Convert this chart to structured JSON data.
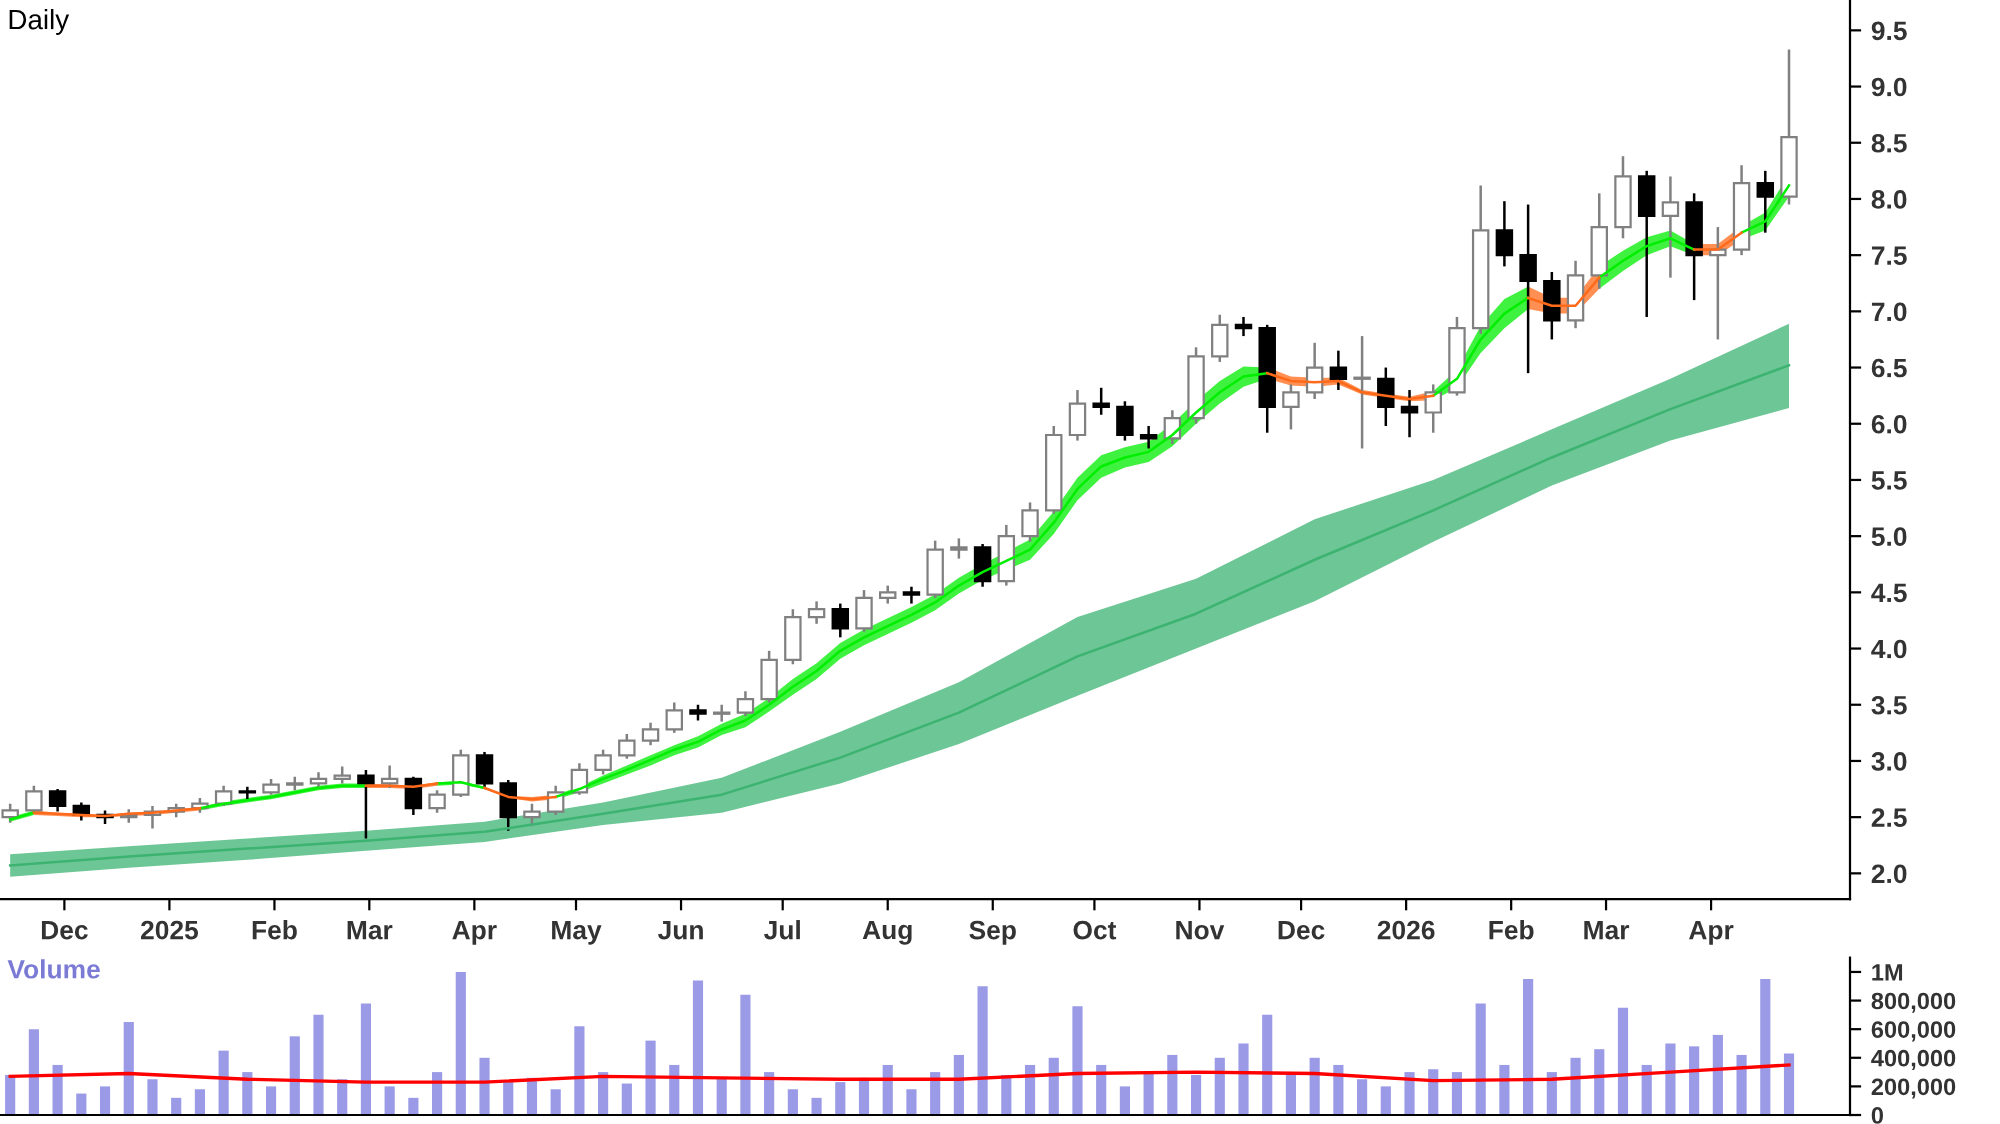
{
  "chart_data": [
    {
      "type": "candlestick",
      "title": "Daily",
      "x": [
        "2024-11-15",
        "2024-11-22",
        "2024-11-29",
        "2024-12-06",
        "2024-12-13",
        "2024-12-20",
        "2024-12-27",
        "2025-01-03",
        "2025-01-10",
        "2025-01-17",
        "2025-01-24",
        "2025-01-31",
        "2025-02-07",
        "2025-02-14",
        "2025-02-21",
        "2025-02-28",
        "2025-03-07",
        "2025-03-14",
        "2025-03-21",
        "2025-03-28",
        "2025-04-04",
        "2025-04-11",
        "2025-04-18",
        "2025-04-25",
        "2025-05-02",
        "2025-05-09",
        "2025-05-16",
        "2025-05-23",
        "2025-05-30",
        "2025-06-06",
        "2025-06-13",
        "2025-06-20",
        "2025-06-27",
        "2025-07-04",
        "2025-07-11",
        "2025-07-18",
        "2025-07-25",
        "2025-08-01",
        "2025-08-08",
        "2025-08-15",
        "2025-08-22",
        "2025-08-29",
        "2025-09-05",
        "2025-09-12",
        "2025-09-19",
        "2025-09-26",
        "2025-10-03",
        "2025-10-10",
        "2025-10-17",
        "2025-10-24",
        "2025-10-31",
        "2025-11-07",
        "2025-11-14",
        "2025-11-21",
        "2025-11-28",
        "2025-12-05",
        "2025-12-12",
        "2025-12-19",
        "2025-12-26",
        "2026-01-02",
        "2026-01-09",
        "2026-01-16",
        "2026-01-23",
        "2026-01-30",
        "2026-02-06",
        "2026-02-13",
        "2026-02-20",
        "2026-02-27",
        "2026-03-06",
        "2026-03-13",
        "2026-03-20",
        "2026-03-27",
        "2026-04-03",
        "2026-04-10",
        "2026-04-17",
        "2026-04-24"
      ],
      "ohlc": [
        [
          2.5,
          2.62,
          2.45,
          2.56
        ],
        [
          2.56,
          2.78,
          2.54,
          2.73
        ],
        [
          2.73,
          2.75,
          2.55,
          2.6
        ],
        [
          2.6,
          2.63,
          2.47,
          2.52
        ],
        [
          2.52,
          2.56,
          2.44,
          2.5
        ],
        [
          2.5,
          2.57,
          2.45,
          2.52
        ],
        [
          2.52,
          2.6,
          2.4,
          2.55
        ],
        [
          2.55,
          2.62,
          2.5,
          2.58
        ],
        [
          2.58,
          2.67,
          2.54,
          2.62
        ],
        [
          2.62,
          2.78,
          2.6,
          2.73
        ],
        [
          2.73,
          2.77,
          2.66,
          2.72
        ],
        [
          2.72,
          2.84,
          2.7,
          2.79
        ],
        [
          2.79,
          2.86,
          2.74,
          2.8
        ],
        [
          2.8,
          2.9,
          2.77,
          2.84
        ],
        [
          2.84,
          2.95,
          2.8,
          2.87
        ],
        [
          2.87,
          2.92,
          2.31,
          2.8
        ],
        [
          2.8,
          2.96,
          2.76,
          2.84
        ],
        [
          2.84,
          2.86,
          2.52,
          2.58
        ],
        [
          2.58,
          2.74,
          2.54,
          2.7
        ],
        [
          2.7,
          3.1,
          2.68,
          3.05
        ],
        [
          3.05,
          3.08,
          2.75,
          2.8
        ],
        [
          2.8,
          2.83,
          2.38,
          2.5
        ],
        [
          2.5,
          2.62,
          2.42,
          2.55
        ],
        [
          2.55,
          2.78,
          2.52,
          2.72
        ],
        [
          2.72,
          2.98,
          2.7,
          2.92
        ],
        [
          2.92,
          3.1,
          2.88,
          3.05
        ],
        [
          3.05,
          3.24,
          3.02,
          3.18
        ],
        [
          3.18,
          3.34,
          3.14,
          3.28
        ],
        [
          3.28,
          3.52,
          3.25,
          3.45
        ],
        [
          3.45,
          3.5,
          3.36,
          3.42
        ],
        [
          3.42,
          3.5,
          3.35,
          3.43
        ],
        [
          3.43,
          3.62,
          3.4,
          3.55
        ],
        [
          3.55,
          3.98,
          3.52,
          3.9
        ],
        [
          3.9,
          4.35,
          3.86,
          4.28
        ],
        [
          4.28,
          4.42,
          4.22,
          4.35
        ],
        [
          4.35,
          4.4,
          4.1,
          4.18
        ],
        [
          4.18,
          4.52,
          4.15,
          4.45
        ],
        [
          4.45,
          4.56,
          4.4,
          4.5
        ],
        [
          4.5,
          4.55,
          4.4,
          4.48
        ],
        [
          4.48,
          4.96,
          4.45,
          4.88
        ],
        [
          4.88,
          4.98,
          4.8,
          4.9
        ],
        [
          4.9,
          4.93,
          4.55,
          4.6
        ],
        [
          4.6,
          5.1,
          4.56,
          5.0
        ],
        [
          5.0,
          5.3,
          4.95,
          5.23
        ],
        [
          5.23,
          5.98,
          5.2,
          5.9
        ],
        [
          5.9,
          6.3,
          5.85,
          6.18
        ],
        [
          6.18,
          6.32,
          6.08,
          6.15
        ],
        [
          6.15,
          6.2,
          5.85,
          5.9
        ],
        [
          5.9,
          5.98,
          5.78,
          5.87
        ],
        [
          5.87,
          6.12,
          5.82,
          6.05
        ],
        [
          6.05,
          6.68,
          6.0,
          6.6
        ],
        [
          6.6,
          6.97,
          6.55,
          6.88
        ],
        [
          6.88,
          6.95,
          6.78,
          6.85
        ],
        [
          6.85,
          6.88,
          5.92,
          6.15
        ],
        [
          6.15,
          6.35,
          5.95,
          6.28
        ],
        [
          6.28,
          6.72,
          6.22,
          6.5
        ],
        [
          6.5,
          6.65,
          6.3,
          6.4
        ],
        [
          6.4,
          6.78,
          5.78,
          6.4
        ],
        [
          6.4,
          6.5,
          5.98,
          6.15
        ],
        [
          6.15,
          6.3,
          5.88,
          6.1
        ],
        [
          6.1,
          6.35,
          5.92,
          6.28
        ],
        [
          6.28,
          6.95,
          6.25,
          6.85
        ],
        [
          6.85,
          8.12,
          6.8,
          7.72
        ],
        [
          7.72,
          7.98,
          7.4,
          7.5
        ],
        [
          7.5,
          7.95,
          6.45,
          7.27
        ],
        [
          7.27,
          7.35,
          6.75,
          6.92
        ],
        [
          6.92,
          7.45,
          6.85,
          7.32
        ],
        [
          7.32,
          8.05,
          7.2,
          7.75
        ],
        [
          7.75,
          8.38,
          7.65,
          8.2
        ],
        [
          8.2,
          8.25,
          6.95,
          7.85
        ],
        [
          7.85,
          8.2,
          7.3,
          7.97
        ],
        [
          7.97,
          8.05,
          7.1,
          7.5
        ],
        [
          7.5,
          7.75,
          6.75,
          7.55
        ],
        [
          7.55,
          8.3,
          7.5,
          8.14
        ],
        [
          8.14,
          8.25,
          7.7,
          8.02
        ],
        [
          8.02,
          9.33,
          7.95,
          8.55
        ]
      ],
      "series": [
        {
          "type": "line",
          "color": "#00ee00",
          "values": [
            2.48,
            2.54,
            null,
            null,
            null,
            null,
            null,
            null,
            2.58,
            2.62,
            2.65,
            2.68,
            2.72,
            2.76,
            2.78,
            2.78,
            null,
            null,
            2.8,
            2.81,
            2.76,
            null,
            null,
            2.68,
            2.75,
            2.84,
            2.92,
            3.01,
            3.1,
            3.17,
            3.28,
            3.36,
            3.5,
            3.66,
            3.8,
            3.98,
            4.1,
            4.2,
            4.3,
            4.41,
            4.56,
            4.68,
            4.78,
            4.88,
            5.12,
            5.42,
            5.62,
            5.7,
            5.75,
            5.9,
            6.1,
            6.28,
            6.42,
            6.45,
            null,
            null,
            null,
            null,
            null,
            null,
            6.25,
            6.4,
            6.75,
            6.98,
            7.12,
            null,
            null,
            7.3,
            7.45,
            7.58,
            7.65,
            7.55,
            null,
            7.7,
            7.8,
            8.12
          ],
          "lower": [
            2.46,
            2.52,
            null,
            null,
            null,
            null,
            null,
            null,
            2.56,
            2.6,
            2.63,
            2.66,
            2.7,
            2.74,
            2.76,
            2.76,
            null,
            null,
            2.78,
            2.79,
            2.75,
            null,
            null,
            2.66,
            2.72,
            2.8,
            2.88,
            2.96,
            3.05,
            3.12,
            3.23,
            3.3,
            3.44,
            3.59,
            3.73,
            3.91,
            4.03,
            4.13,
            4.23,
            4.34,
            4.49,
            4.61,
            4.7,
            4.79,
            5.02,
            5.32,
            5.52,
            5.61,
            5.66,
            5.8,
            6.0,
            6.18,
            6.33,
            6.4,
            null,
            null,
            null,
            null,
            null,
            null,
            6.21,
            6.32,
            6.63,
            6.85,
            7.02,
            null,
            null,
            7.2,
            7.36,
            7.5,
            7.58,
            7.5,
            null,
            7.64,
            7.72,
            8.02
          ],
          "upper": [
            2.5,
            2.56,
            null,
            null,
            null,
            null,
            null,
            null,
            2.59,
            2.64,
            2.67,
            2.7,
            2.74,
            2.78,
            2.8,
            2.8,
            null,
            null,
            2.81,
            2.82,
            2.77,
            null,
            null,
            2.7,
            2.77,
            2.87,
            2.96,
            3.05,
            3.14,
            3.22,
            3.33,
            3.42,
            3.56,
            3.73,
            3.87,
            4.05,
            4.17,
            4.27,
            4.37,
            4.48,
            4.63,
            4.75,
            4.86,
            4.97,
            5.22,
            5.52,
            5.72,
            5.79,
            5.84,
            6.0,
            6.2,
            6.38,
            6.51,
            6.5,
            null,
            null,
            null,
            null,
            null,
            null,
            6.29,
            6.48,
            6.87,
            7.11,
            7.22,
            null,
            null,
            7.4,
            7.54,
            7.66,
            7.72,
            7.6,
            null,
            7.76,
            7.88,
            8.22
          ]
        },
        {
          "type": "line",
          "color": "#ff6a1a",
          "values": [
            null,
            2.54,
            2.53,
            2.52,
            2.51,
            2.53,
            2.54,
            2.56,
            2.58,
            null,
            null,
            null,
            null,
            null,
            null,
            2.78,
            2.78,
            2.77,
            2.8,
            null,
            2.76,
            2.68,
            2.66,
            2.68,
            null,
            null,
            null,
            null,
            null,
            null,
            null,
            null,
            null,
            null,
            null,
            null,
            null,
            null,
            null,
            null,
            null,
            null,
            null,
            null,
            null,
            null,
            null,
            null,
            null,
            null,
            null,
            null,
            null,
            6.45,
            6.38,
            6.37,
            6.38,
            6.28,
            6.25,
            6.22,
            6.25,
            null,
            null,
            null,
            7.12,
            7.05,
            7.05,
            7.3,
            null,
            null,
            null,
            7.55,
            7.55,
            7.7,
            null,
            null
          ],
          "lower": [
            null,
            2.52,
            2.51,
            2.5,
            2.5,
            2.51,
            2.52,
            2.54,
            2.56,
            null,
            null,
            null,
            null,
            null,
            null,
            2.76,
            2.76,
            2.75,
            2.78,
            null,
            2.75,
            2.67,
            2.64,
            2.66,
            null,
            null,
            null,
            null,
            null,
            null,
            null,
            null,
            null,
            null,
            null,
            null,
            null,
            null,
            null,
            null,
            null,
            null,
            null,
            null,
            null,
            null,
            null,
            null,
            null,
            null,
            null,
            null,
            null,
            6.4,
            6.34,
            6.33,
            6.35,
            6.26,
            6.23,
            6.2,
            6.21,
            null,
            null,
            null,
            7.02,
            6.98,
            6.98,
            7.2,
            null,
            null,
            null,
            7.5,
            7.5,
            7.64,
            null,
            null
          ],
          "upper": [
            null,
            2.56,
            2.54,
            2.53,
            2.52,
            2.54,
            2.55,
            2.57,
            2.59,
            null,
            null,
            null,
            null,
            null,
            null,
            2.8,
            2.79,
            2.78,
            2.81,
            null,
            2.77,
            2.69,
            2.68,
            2.7,
            null,
            null,
            null,
            null,
            null,
            null,
            null,
            null,
            null,
            null,
            null,
            null,
            null,
            null,
            null,
            null,
            null,
            null,
            null,
            null,
            null,
            null,
            null,
            null,
            null,
            null,
            null,
            null,
            null,
            6.5,
            6.42,
            6.41,
            6.41,
            6.3,
            6.27,
            6.24,
            6.29,
            null,
            null,
            null,
            7.22,
            7.12,
            7.12,
            7.4,
            null,
            null,
            null,
            7.6,
            7.6,
            7.76,
            null,
            null
          ]
        },
        {
          "type": "line",
          "color": "#3cb371",
          "x": [
            "2024-11-15",
            "2024-12-20",
            "2025-01-24",
            "2025-02-28",
            "2025-04-04",
            "2025-05-09",
            "2025-06-13",
            "2025-07-18",
            "2025-08-22",
            "2025-09-26",
            "2025-10-31",
            "2025-12-05",
            "2026-01-09",
            "2026-02-13",
            "2026-03-20",
            "2026-04-24"
          ],
          "values": [
            2.07,
            2.15,
            2.22,
            2.29,
            2.37,
            2.53,
            2.7,
            3.03,
            3.43,
            3.93,
            4.31,
            4.79,
            5.23,
            5.7,
            6.13,
            6.52
          ],
          "lower": [
            1.97,
            2.05,
            2.12,
            2.2,
            2.28,
            2.43,
            2.54,
            2.8,
            3.15,
            3.58,
            4.0,
            4.42,
            4.95,
            5.45,
            5.85,
            6.14
          ],
          "upper": [
            2.17,
            2.24,
            2.31,
            2.38,
            2.46,
            2.63,
            2.85,
            3.26,
            3.7,
            4.28,
            4.62,
            5.15,
            5.5,
            5.95,
            6.4,
            6.89
          ]
        }
      ],
      "xlim": [
        "2024-11-12",
        "2026-05-12"
      ],
      "xticks": [
        {
          "value": "2024-12-01",
          "label": "Dec"
        },
        {
          "value": "2025-01-01",
          "label": "2025"
        },
        {
          "value": "2025-02-01",
          "label": "Feb"
        },
        {
          "value": "2025-03-01",
          "label": "Mar"
        },
        {
          "value": "2025-04-01",
          "label": "Apr"
        },
        {
          "value": "2025-05-01",
          "label": "May"
        },
        {
          "value": "2025-06-01",
          "label": "Jun"
        },
        {
          "value": "2025-07-01",
          "label": "Jul"
        },
        {
          "value": "2025-08-01",
          "label": "Aug"
        },
        {
          "value": "2025-09-01",
          "label": "Sep"
        },
        {
          "value": "2025-10-01",
          "label": "Oct"
        },
        {
          "value": "2025-11-01",
          "label": "Nov"
        },
        {
          "value": "2025-12-01",
          "label": "Dec"
        },
        {
          "value": "2026-01-01",
          "label": "2026"
        },
        {
          "value": "2026-02-01",
          "label": "Feb"
        },
        {
          "value": "2026-03-01",
          "label": "Mar"
        },
        {
          "value": "2026-04-01",
          "label": "Apr"
        }
      ],
      "ylim": [
        1.77,
        9.77
      ],
      "yticks": [
        {
          "value": 2,
          "label": "2.0"
        },
        2.5,
        {
          "value": 3,
          "label": "3.0"
        },
        3.5,
        {
          "value": 4,
          "label": "4.0"
        },
        4.5,
        {
          "value": 5,
          "label": "5.0"
        },
        5.5,
        {
          "value": 6,
          "label": "6.0"
        },
        6.5,
        {
          "value": 7,
          "label": "7.0"
        },
        7.5,
        {
          "value": 8,
          "label": "8.0"
        },
        8.5,
        {
          "value": 9,
          "label": "9.0"
        },
        9.5
      ],
      "grid": false
    },
    {
      "type": "bar",
      "title": "Volume",
      "color": "#9a9ae6",
      "x": [
        "2024-11-15",
        "2024-11-22",
        "2024-11-29",
        "2024-12-06",
        "2024-12-13",
        "2024-12-20",
        "2024-12-27",
        "2025-01-03",
        "2025-01-10",
        "2025-01-17",
        "2025-01-24",
        "2025-01-31",
        "2025-02-07",
        "2025-02-14",
        "2025-02-21",
        "2025-02-28",
        "2025-03-07",
        "2025-03-14",
        "2025-03-21",
        "2025-03-28",
        "2025-04-04",
        "2025-04-11",
        "2025-04-18",
        "2025-04-25",
        "2025-05-02",
        "2025-05-09",
        "2025-05-16",
        "2025-05-23",
        "2025-05-30",
        "2025-06-06",
        "2025-06-13",
        "2025-06-20",
        "2025-06-27",
        "2025-07-04",
        "2025-07-11",
        "2025-07-18",
        "2025-07-25",
        "2025-08-01",
        "2025-08-08",
        "2025-08-15",
        "2025-08-22",
        "2025-08-29",
        "2025-09-05",
        "2025-09-12",
        "2025-09-19",
        "2025-09-26",
        "2025-10-03",
        "2025-10-10",
        "2025-10-17",
        "2025-10-24",
        "2025-10-31",
        "2025-11-07",
        "2025-11-14",
        "2025-11-21",
        "2025-11-28",
        "2025-12-05",
        "2025-12-12",
        "2025-12-19",
        "2025-12-26",
        "2026-01-02",
        "2026-01-09",
        "2026-01-16",
        "2026-01-23",
        "2026-01-30",
        "2026-02-06",
        "2026-02-13",
        "2026-02-20",
        "2026-02-27",
        "2026-03-06",
        "2026-03-13",
        "2026-03-20",
        "2026-03-27",
        "2026-04-03",
        "2026-04-10",
        "2026-04-17",
        "2026-04-24"
      ],
      "values": [
        280000,
        600000,
        350000,
        150000,
        200000,
        650000,
        250000,
        120000,
        180000,
        450000,
        300000,
        200000,
        550000,
        700000,
        250000,
        780000,
        200000,
        120000,
        300000,
        1000000,
        400000,
        230000,
        260000,
        180000,
        620000,
        300000,
        220000,
        520000,
        350000,
        940000,
        260000,
        840000,
        300000,
        180000,
        120000,
        230000,
        260000,
        350000,
        180000,
        300000,
        420000,
        900000,
        280000,
        350000,
        400000,
        760000,
        350000,
        200000,
        300000,
        420000,
        280000,
        400000,
        500000,
        700000,
        300000,
        400000,
        350000,
        250000,
        200000,
        300000,
        320000,
        300000,
        780000,
        350000,
        950000,
        300000,
        400000,
        460000,
        750000,
        350000,
        500000,
        480000,
        560000,
        420000,
        950000,
        430000
      ],
      "series": [
        {
          "type": "line",
          "color": "#ff0000",
          "x": [
            "2024-11-15",
            "2024-12-20",
            "2025-01-24",
            "2025-02-28",
            "2025-04-04",
            "2025-05-09",
            "2025-06-13",
            "2025-07-18",
            "2025-08-22",
            "2025-09-26",
            "2025-10-31",
            "2025-12-05",
            "2026-01-09",
            "2026-02-13",
            "2026-03-20",
            "2026-04-24"
          ],
          "values": [
            270000,
            290000,
            250000,
            230000,
            230000,
            270000,
            260000,
            250000,
            250000,
            290000,
            300000,
            290000,
            240000,
            250000,
            300000,
            350000
          ]
        }
      ],
      "xlim": [
        "2024-11-12",
        "2026-05-12"
      ],
      "ylim": [
        0,
        1100000
      ],
      "yticks": [
        0,
        {
          "value": 200000,
          "label": "200,000"
        },
        {
          "value": 400000,
          "label": "400,000"
        },
        {
          "value": 600000,
          "label": "600,000"
        },
        {
          "value": 800000,
          "label": "800,000"
        },
        {
          "value": 1000000,
          "label": "1M"
        }
      ],
      "tick_labels": "y",
      "grid": false
    }
  ]
}
